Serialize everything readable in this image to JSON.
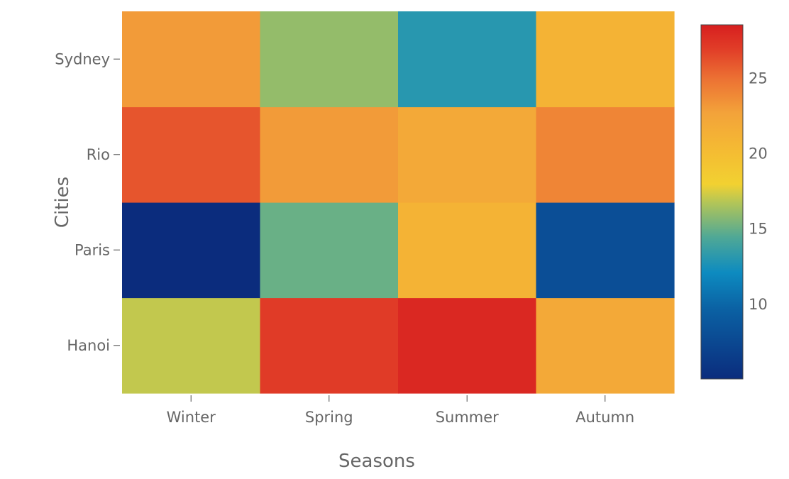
{
  "chart_data": {
    "type": "heatmap",
    "title": "",
    "xlabel": "Seasons",
    "ylabel": "Cities",
    "x": [
      "Winter",
      "Spring",
      "Summer",
      "Autumn"
    ],
    "y": [
      "Hanoi",
      "Paris",
      "Rio",
      "Sydney"
    ],
    "z": [
      [
        17,
        27,
        28,
        22
      ],
      [
        5,
        15,
        21,
        8
      ],
      [
        26,
        23,
        22,
        24
      ],
      [
        23,
        16,
        13,
        21
      ]
    ],
    "zlim": [
      5,
      28.5
    ],
    "colorscale": [
      [
        0.0,
        "#0b2c7d"
      ],
      [
        0.2,
        "#0b62a4"
      ],
      [
        0.3,
        "#0d8bc0"
      ],
      [
        0.4,
        "#4fa896"
      ],
      [
        0.5,
        "#b5c656"
      ],
      [
        0.55,
        "#f2d131"
      ],
      [
        0.65,
        "#f4ba33"
      ],
      [
        0.75,
        "#f3a33a"
      ],
      [
        0.85,
        "#ec7033"
      ],
      [
        0.93,
        "#e13e28"
      ],
      [
        1.0,
        "#d71f1f"
      ]
    ],
    "colorbar": {
      "tickvals": [
        10,
        15,
        20,
        25
      ],
      "ticktext": [
        "10",
        "15",
        "20",
        "25"
      ]
    },
    "grid": false
  }
}
